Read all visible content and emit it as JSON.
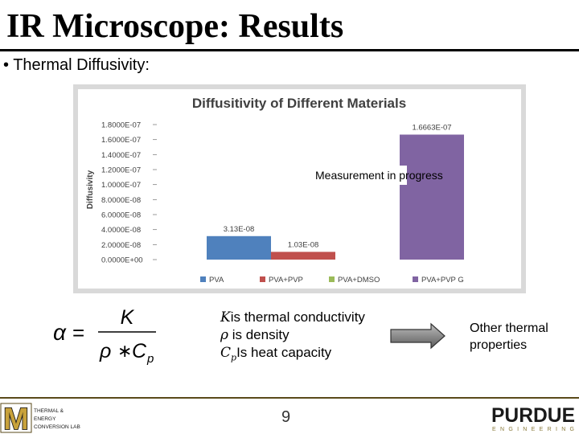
{
  "slide": {
    "title": "IR Microscope: Results",
    "bullet_marker": "•",
    "bullet": "Thermal Diffusivity:",
    "note": "Measurement in progress",
    "page_number": "9"
  },
  "chart_data": {
    "type": "bar",
    "title": "Diffusitivity of Different Materials",
    "ylabel": "Diffusivity",
    "xlabel": "",
    "ylim": [
      0,
      1.8e-07
    ],
    "y_ticks": [
      "1.8000E-07",
      "1.6000E-07",
      "1.4000E-07",
      "1.2000E-07",
      "1.0000E-07",
      "8.0000E-08",
      "6.0000E-08",
      "4.0000E-08",
      "2.0000E-08",
      "0.0000E+00"
    ],
    "categories": [
      "PVA",
      "PVA+PVP",
      "PVA+DMSO",
      "PVA+PVP G"
    ],
    "values": [
      3.13e-08,
      1.03e-08,
      null,
      1.6663e-07
    ],
    "data_labels": [
      "3.13E-08",
      "1.03E-08",
      "",
      "1.6663E-07"
    ],
    "colors": [
      "#4f81bd",
      "#c0504d",
      "#9bbb59",
      "#8064a2"
    ],
    "legend_position": "bottom",
    "grid": false
  },
  "formula": {
    "lhs": "α",
    "eq": "=",
    "numerator": "K",
    "denominator_rho": "ρ",
    "denominator_op": "∗",
    "denominator_c": "C",
    "denominator_sub": "p"
  },
  "definitions": [
    {
      "symbol": "K",
      "text": "is thermal conductivity"
    },
    {
      "symbol": "ρ",
      "text": " is density"
    },
    {
      "symbol": "C",
      "sub": "p",
      "text": "Is heat capacity"
    }
  ],
  "arrow_text_line1": "Other thermal",
  "arrow_text_line2": "properties",
  "logos": {
    "left_mark": "M",
    "left_lines": [
      "THERMAL &",
      "ENERGY",
      "CONVERSION LAB"
    ],
    "right_main": "PURDUE",
    "right_sub": "ENGINEERING"
  }
}
